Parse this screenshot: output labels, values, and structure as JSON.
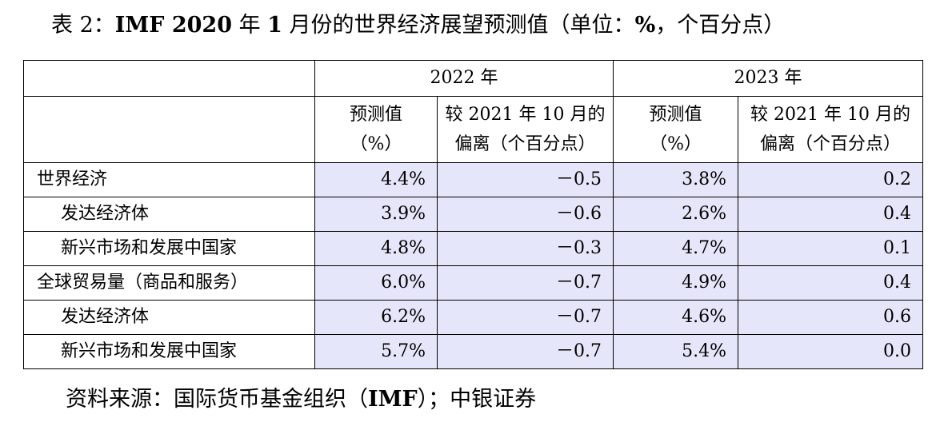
{
  "title": {
    "prefix": "表 2：",
    "bold": "IMF 2020",
    "middle1": " 年 ",
    "bold2": "1",
    "middle2": " 月份的世界经济展望预测值（单位：",
    "bold3": "%",
    "suffix": "，个百分点）"
  },
  "table": {
    "years": [
      "2022 年",
      "2023 年"
    ],
    "sub_headers": [
      {
        "line1": "预测值",
        "line2": "（%）"
      },
      {
        "line1": "较 2021 年 10 月的",
        "line2": "偏离（个百分点）"
      },
      {
        "line1": "预测值",
        "line2": "（%）"
      },
      {
        "line1": "较 2021 年 10 月的",
        "line2": "偏离（个百分点）"
      }
    ],
    "rows": [
      {
        "label": "世界经济",
        "values": [
          "4.4%",
          "－0.5",
          "3.8%",
          "0.2"
        ]
      },
      {
        "label": "发达经济体",
        "values": [
          "3.9%",
          "－0.6",
          "2.6%",
          "0.4"
        ]
      },
      {
        "label": "新兴市场和发展中国家",
        "values": [
          "4.8%",
          "－0.3",
          "4.7%",
          "0.1"
        ]
      },
      {
        "label": "全球贸易量（商品和服务）",
        "values": [
          "6.0%",
          "－0.7",
          "4.9%",
          "0.4"
        ]
      },
      {
        "label": "发达经济体",
        "values": [
          "6.2%",
          "－0.7",
          "4.6%",
          "0.6"
        ]
      },
      {
        "label": "新兴市场和发展中国家",
        "values": [
          "5.7%",
          "－0.7",
          "5.4%",
          "0.0"
        ]
      }
    ]
  },
  "source": {
    "prefix": "资料来源：国际货币基金组织（",
    "bold": "IMF",
    "suffix": "）；中银证券"
  },
  "colors": {
    "value_cell_bg": "#e6e6fa",
    "border": "#000000"
  }
}
